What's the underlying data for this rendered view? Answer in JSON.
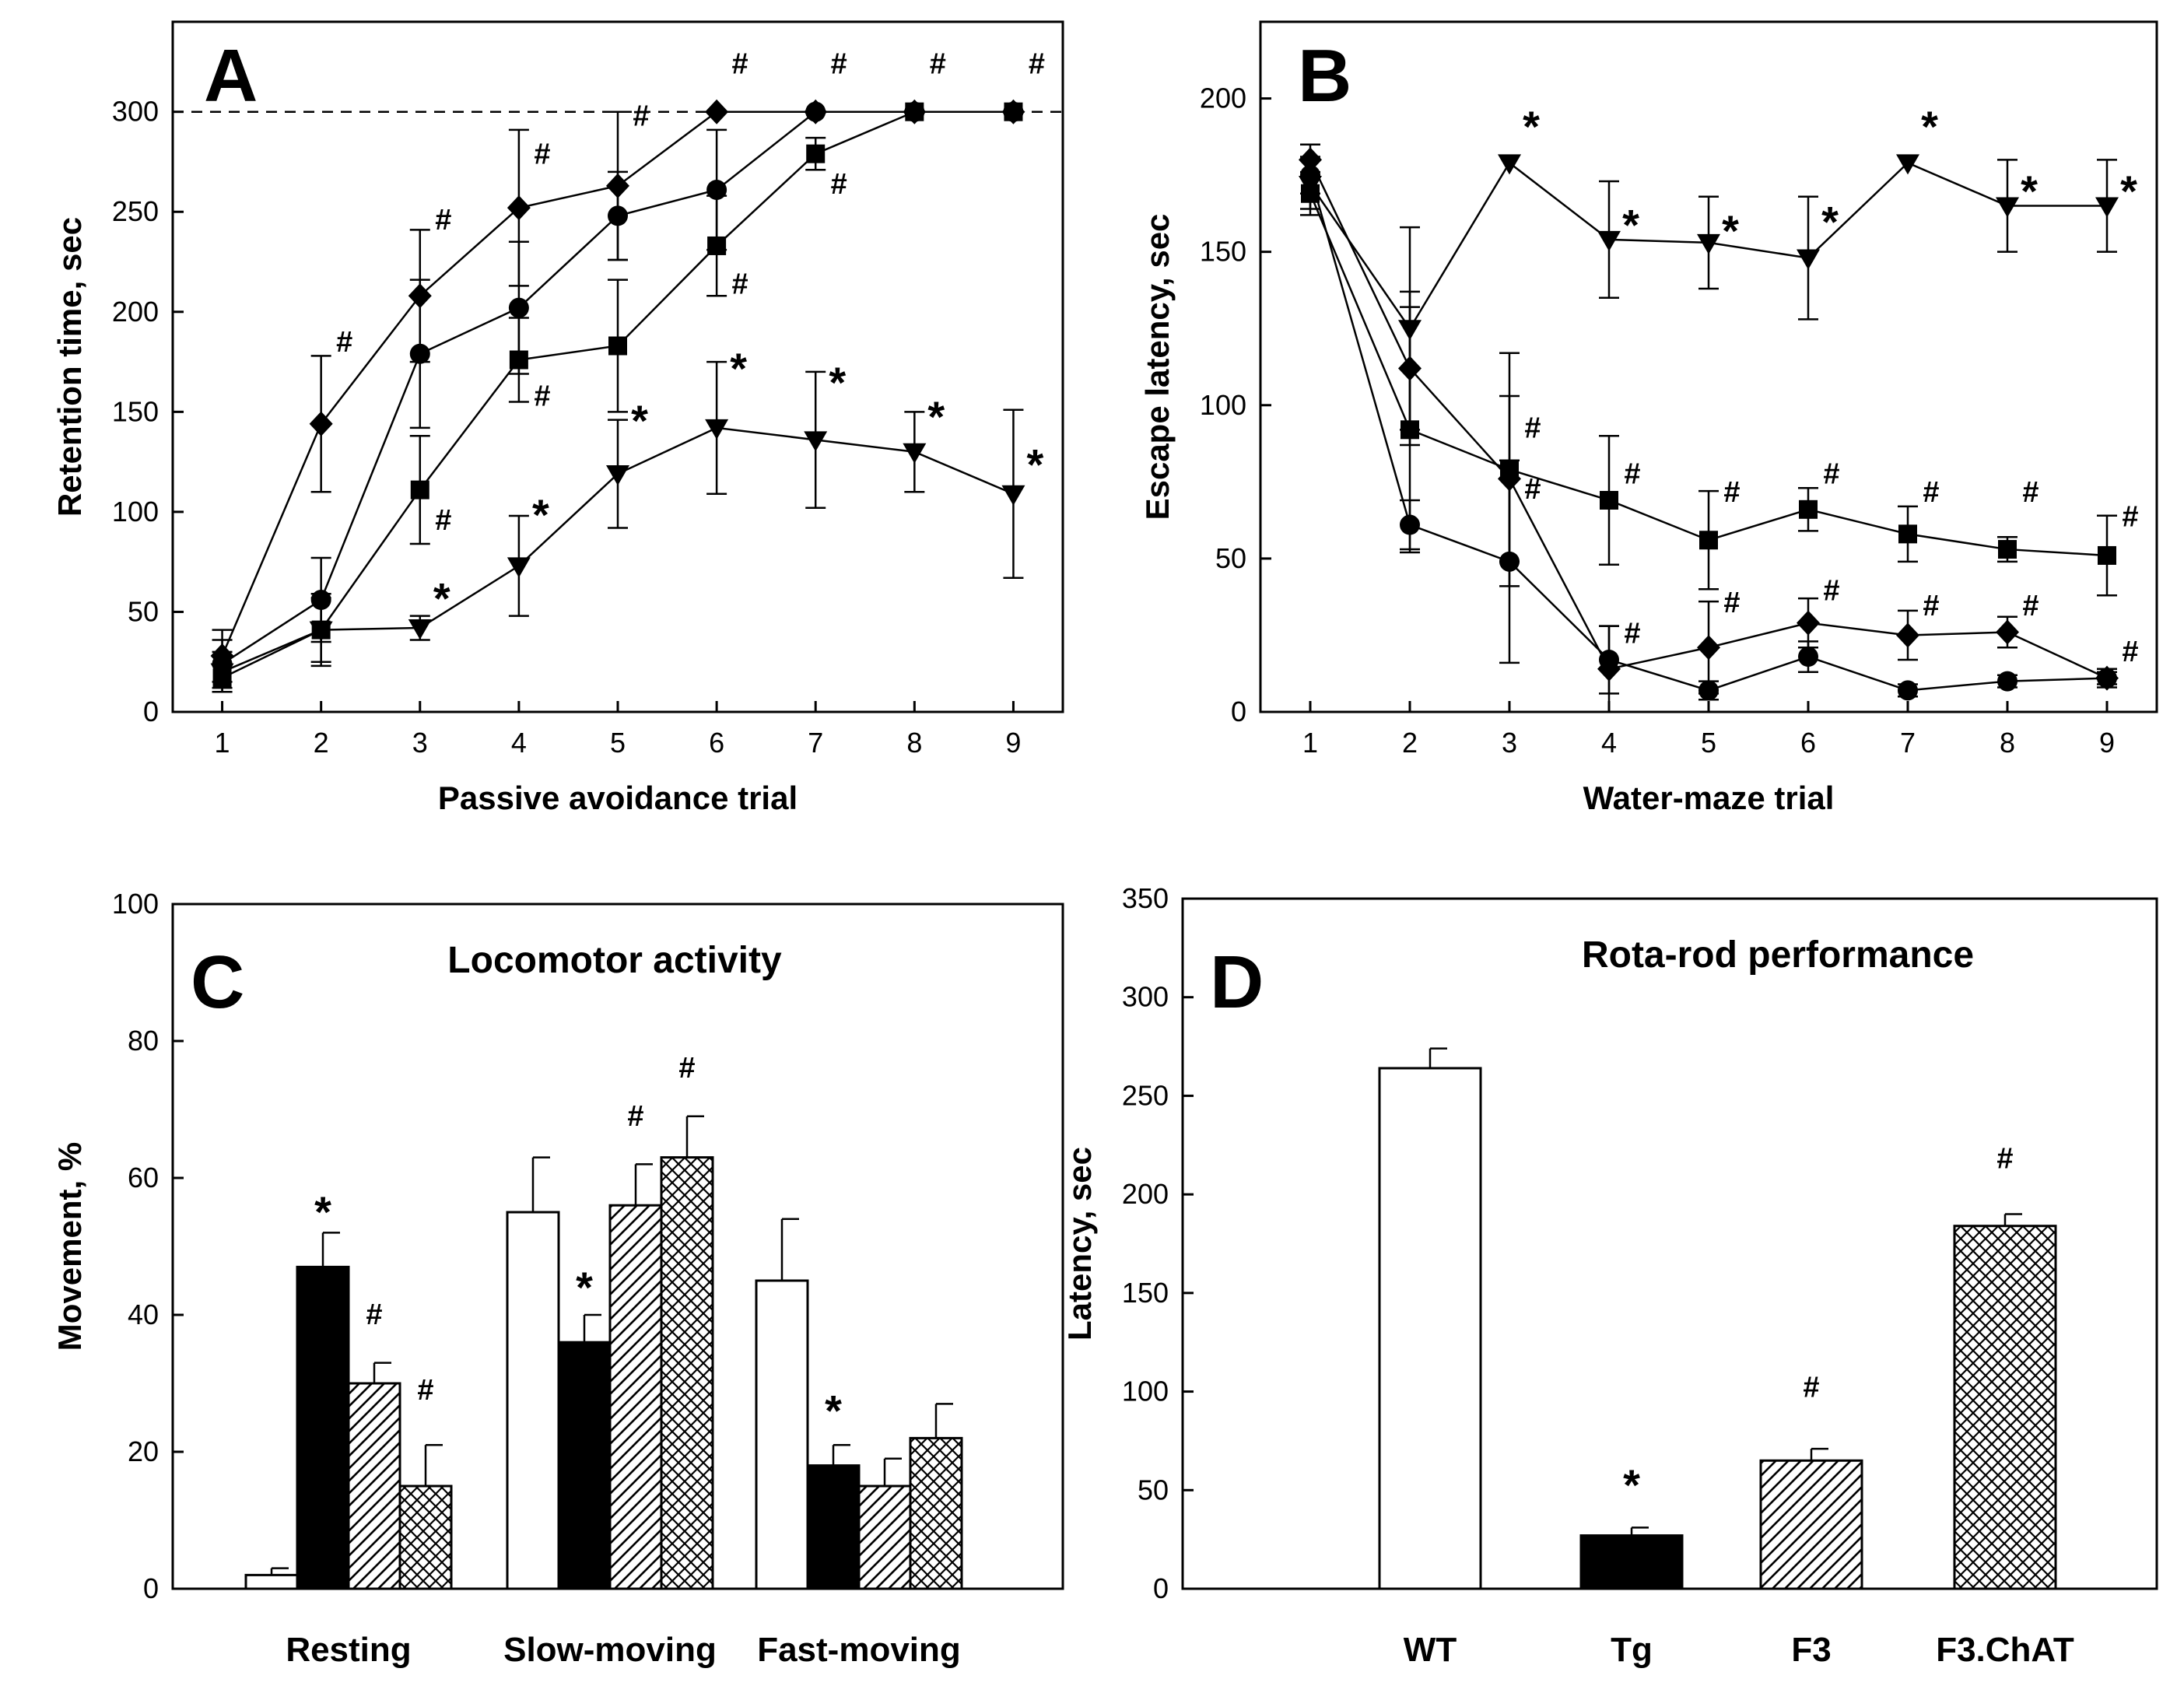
{
  "chart_data": [
    {
      "panel": "A",
      "type": "line",
      "xlabel": "Passive avoidance trial",
      "ylabel": "Retention time, sec",
      "x": [
        1,
        2,
        3,
        4,
        5,
        6,
        7,
        8,
        9
      ],
      "xlim": [
        0.5,
        9.5
      ],
      "ylim": [
        0,
        345
      ],
      "xticks": [
        "1",
        "2",
        "3",
        "4",
        "5",
        "6",
        "7",
        "8",
        "9"
      ],
      "yticks": [
        "0",
        "50",
        "100",
        "150",
        "200",
        "250",
        "300"
      ],
      "reference_line": 300,
      "series": [
        {
          "name": "diamond",
          "marker": "diamond",
          "values": [
            28,
            144,
            208,
            252,
            263,
            300,
            300,
            300,
            300
          ],
          "errors": [
            13,
            34,
            33,
            39,
            37,
            0,
            0,
            0,
            0
          ]
        },
        {
          "name": "circle",
          "marker": "circle",
          "values": [
            24,
            56,
            179,
            202,
            248,
            261,
            300,
            300,
            300
          ],
          "errors": [
            12,
            21,
            37,
            33,
            22,
            30,
            0,
            0,
            0
          ]
        },
        {
          "name": "square",
          "marker": "square",
          "values": [
            17,
            41,
            111,
            176,
            183,
            233,
            279,
            300,
            300
          ],
          "errors": [
            7,
            16,
            27,
            21,
            33,
            25,
            8,
            0,
            0
          ]
        },
        {
          "name": "triangle",
          "marker": "triangle-down",
          "values": [
            20,
            41,
            42,
            73,
            119,
            142,
            136,
            130,
            109
          ],
          "errors": [
            10,
            18,
            6,
            25,
            27,
            33,
            34,
            20,
            42
          ]
        }
      ],
      "annotations": [
        {
          "text": "#",
          "x": 2,
          "y": 184
        },
        {
          "text": "#",
          "x": 3,
          "y": 245
        },
        {
          "text": "#",
          "x": 4,
          "y": 278
        },
        {
          "text": "#",
          "x": 5,
          "y": 297
        },
        {
          "text": "#",
          "x": 6,
          "y": 323
        },
        {
          "text": "#",
          "x": 7,
          "y": 323
        },
        {
          "text": "#",
          "x": 8,
          "y": 323
        },
        {
          "text": "#",
          "x": 9,
          "y": 323
        },
        {
          "text": "#",
          "x": 4,
          "y": 157
        },
        {
          "text": "#",
          "x": 3,
          "y": 95
        },
        {
          "text": "#",
          "x": 6,
          "y": 213
        },
        {
          "text": "#",
          "x": 7,
          "y": 263
        },
        {
          "text": "*",
          "x": 3,
          "y": 60
        },
        {
          "text": "*",
          "x": 4,
          "y": 102
        },
        {
          "text": "*",
          "x": 5,
          "y": 149
        },
        {
          "text": "*",
          "x": 6,
          "y": 175
        },
        {
          "text": "*",
          "x": 7,
          "y": 168
        },
        {
          "text": "*",
          "x": 8,
          "y": 151
        },
        {
          "text": "*",
          "x": 9,
          "y": 127
        }
      ]
    },
    {
      "panel": "B",
      "type": "line",
      "xlabel": "Water-maze trial",
      "ylabel": "Escape latency, sec",
      "x": [
        1,
        2,
        3,
        4,
        5,
        6,
        7,
        8,
        9
      ],
      "xlim": [
        0.5,
        9.5
      ],
      "ylim": [
        0,
        225
      ],
      "xticks": [
        "1",
        "2",
        "3",
        "4",
        "5",
        "6",
        "7",
        "8",
        "9"
      ],
      "yticks": [
        "0",
        "50",
        "100",
        "150",
        "200"
      ],
      "series": [
        {
          "name": "triangle",
          "marker": "triangle-down",
          "values": [
            172,
            125,
            179,
            154,
            153,
            148,
            179,
            165,
            165
          ],
          "errors": [
            8,
            33,
            0,
            19,
            15,
            20,
            0,
            15,
            15
          ]
        },
        {
          "name": "diamond",
          "marker": "diamond",
          "values": [
            180,
            112,
            76,
            14,
            21,
            29,
            25,
            26,
            11
          ],
          "errors": [
            5,
            25,
            27,
            14,
            15,
            8,
            8,
            5,
            3
          ]
        },
        {
          "name": "square",
          "marker": "square",
          "values": [
            169,
            92,
            79,
            69,
            56,
            66,
            58,
            53,
            51
          ],
          "errors": [
            7,
            40,
            38,
            21,
            16,
            7,
            9,
            4,
            13
          ]
        },
        {
          "name": "circle",
          "marker": "circle",
          "values": [
            175,
            61,
            49,
            17,
            7,
            18,
            7,
            10,
            11
          ],
          "errors": [
            6,
            8,
            33,
            11,
            3,
            5,
            2,
            2,
            2
          ]
        }
      ],
      "annotations": [
        {
          "text": "*",
          "x": 3,
          "y": 193
        },
        {
          "text": "*",
          "x": 4,
          "y": 161
        },
        {
          "text": "*",
          "x": 5,
          "y": 159
        },
        {
          "text": "*",
          "x": 6,
          "y": 162
        },
        {
          "text": "*",
          "x": 7,
          "y": 193
        },
        {
          "text": "*",
          "x": 8,
          "y": 172
        },
        {
          "text": "*",
          "x": 9,
          "y": 172
        },
        {
          "text": "#",
          "x": 3,
          "y": 92
        },
        {
          "text": "#",
          "x": 4,
          "y": 77
        },
        {
          "text": "#",
          "x": 5,
          "y": 71
        },
        {
          "text": "#",
          "x": 6,
          "y": 77
        },
        {
          "text": "#",
          "x": 7,
          "y": 71
        },
        {
          "text": "#",
          "x": 8,
          "y": 71
        },
        {
          "text": "#",
          "x": 9,
          "y": 63
        },
        {
          "text": "#",
          "x": 3,
          "y": 72
        },
        {
          "text": "#",
          "x": 4,
          "y": 25
        },
        {
          "text": "#",
          "x": 5,
          "y": 35
        },
        {
          "text": "#",
          "x": 6,
          "y": 39
        },
        {
          "text": "#",
          "x": 7,
          "y": 34
        },
        {
          "text": "#",
          "x": 8,
          "y": 34
        },
        {
          "text": "#",
          "x": 9,
          "y": 19
        }
      ]
    },
    {
      "panel": "C",
      "type": "bar",
      "title": "Locomotor activity",
      "xlabel": "",
      "ylabel": "Movement, %",
      "ylim": [
        0,
        100
      ],
      "yticks": [
        "0",
        "20",
        "40",
        "60",
        "80",
        "100"
      ],
      "categories": [
        "Resting",
        "Slow-moving",
        "Fast-moving"
      ],
      "series": [
        {
          "name": "open",
          "fill": "white",
          "values": [
            2,
            55,
            45
          ],
          "errors": [
            1,
            8,
            9
          ]
        },
        {
          "name": "solid",
          "fill": "black",
          "values": [
            47,
            36,
            18
          ],
          "errors": [
            5,
            4,
            3
          ]
        },
        {
          "name": "hatched",
          "fill": "diagonal-hatch",
          "values": [
            30,
            56,
            15
          ],
          "errors": [
            3,
            6,
            4
          ]
        },
        {
          "name": "crosshatched",
          "fill": "cross-hatch",
          "values": [
            15,
            63,
            22
          ],
          "errors": [
            6,
            6,
            5
          ]
        }
      ],
      "annotations": [
        {
          "text": "*",
          "category": 0,
          "series": 1,
          "y": 56
        },
        {
          "text": "#",
          "category": 0,
          "series": 2,
          "y": 40
        },
        {
          "text": "#",
          "category": 0,
          "series": 3,
          "y": 29
        },
        {
          "text": "*",
          "category": 1,
          "series": 1,
          "y": 45
        },
        {
          "text": "#",
          "category": 1,
          "series": 2,
          "y": 69
        },
        {
          "text": "#",
          "category": 1,
          "series": 3,
          "y": 76
        },
        {
          "text": "*",
          "category": 2,
          "series": 1,
          "y": 27
        }
      ]
    },
    {
      "panel": "D",
      "type": "bar",
      "title": "Rota-rod performance",
      "xlabel": "",
      "ylabel": "Latency, sec",
      "ylim": [
        0,
        350
      ],
      "yticks": [
        "0",
        "50",
        "100",
        "150",
        "200",
        "250",
        "300",
        "350"
      ],
      "categories": [
        "WT",
        "Tg",
        "F3",
        "F3.ChAT"
      ],
      "series": [
        {
          "name": "latency",
          "fills": [
            "white",
            "black",
            "diagonal-hatch",
            "cross-hatch"
          ],
          "values": [
            264,
            27,
            65,
            184
          ],
          "errors": [
            10,
            4,
            6,
            6
          ]
        }
      ],
      "annotations": [
        {
          "text": "*",
          "category": 1,
          "y": 56
        },
        {
          "text": "#",
          "category": 2,
          "y": 102
        },
        {
          "text": "#",
          "category": 3,
          "y": 218
        }
      ]
    }
  ]
}
